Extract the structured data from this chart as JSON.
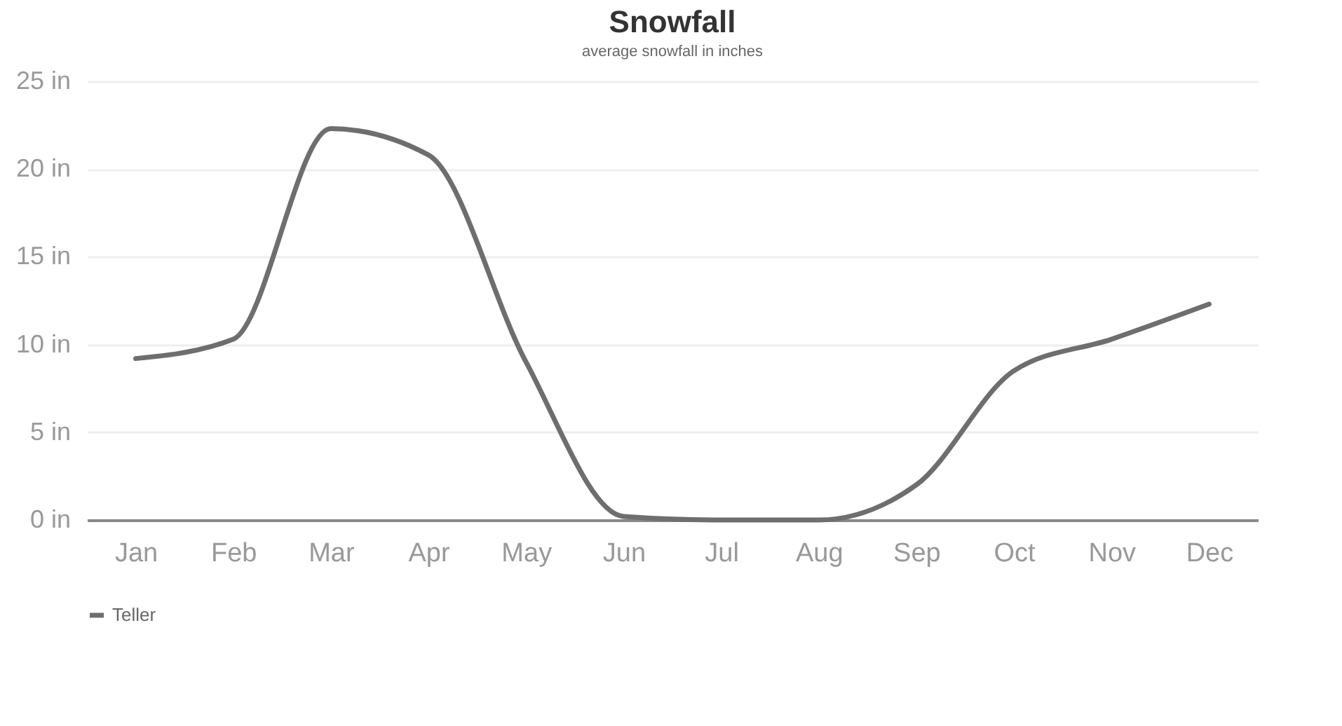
{
  "chart_data": {
    "type": "line",
    "title": "Snowfall",
    "subtitle": "average snowfall in inches",
    "categories": [
      "Jan",
      "Feb",
      "Mar",
      "Apr",
      "May",
      "Jun",
      "Jul",
      "Aug",
      "Sep",
      "Oct",
      "Nov",
      "Dec"
    ],
    "series": [
      {
        "name": "Teller",
        "color": "#6e6e6e",
        "values": [
          9.2,
          10.3,
          22.3,
          20.8,
          9.0,
          0.2,
          0,
          0,
          2.0,
          8.5,
          10.3,
          12.3
        ]
      }
    ],
    "ylim": [
      0,
      25
    ],
    "yticks": [
      {
        "value": 0,
        "label": "0 in"
      },
      {
        "value": 5,
        "label": "5 in"
      },
      {
        "value": 10,
        "label": "10 in"
      },
      {
        "value": 15,
        "label": "15 in"
      },
      {
        "value": 20,
        "label": "20 in"
      },
      {
        "value": 25,
        "label": "25 in"
      }
    ],
    "grid": "y",
    "legend": "bottom",
    "marker": "none",
    "line_style": "solid"
  }
}
